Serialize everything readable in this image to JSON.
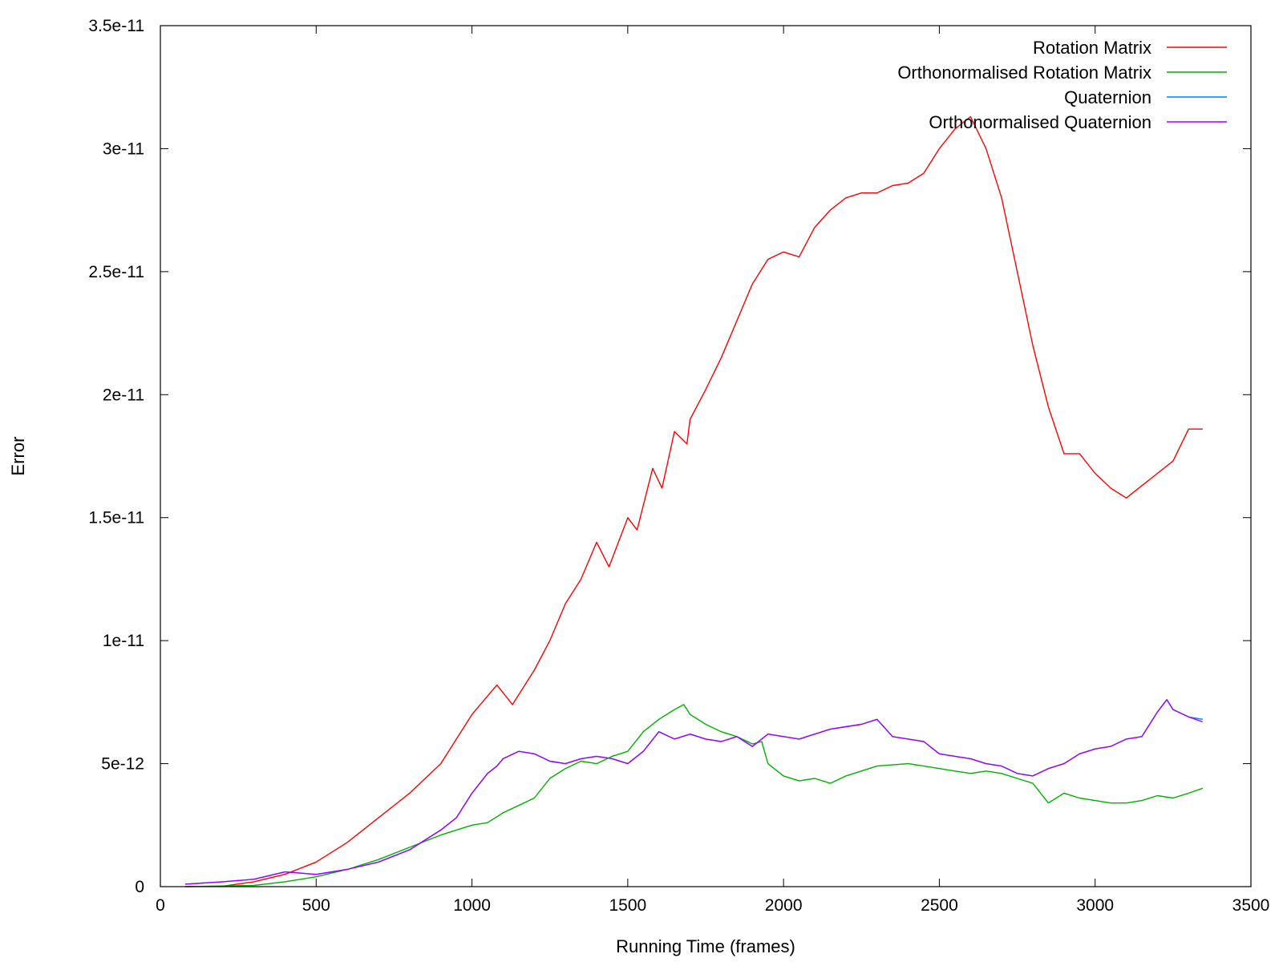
{
  "chart_data": {
    "type": "line",
    "title": "",
    "xlabel": "Running Time (frames)",
    "ylabel": "Error",
    "xlim": [
      0,
      3500
    ],
    "ylim": [
      0,
      3.5e-11
    ],
    "x_ticks": [
      0,
      500,
      1000,
      1500,
      2000,
      2500,
      3000,
      3500
    ],
    "x_tick_labels": [
      "0",
      "500",
      "1000",
      "1500",
      "2000",
      "2500",
      "3000",
      "3500"
    ],
    "y_ticks": [
      0,
      5e-12,
      1e-11,
      1.5e-11,
      2e-11,
      2.5e-11,
      3e-11,
      3.5e-11
    ],
    "y_tick_labels": [
      "0",
      "5e-12",
      "1e-11",
      "1.5e-11",
      "2e-11",
      "2.5e-11",
      "3e-11",
      "3.5e-11"
    ],
    "grid": false,
    "legend_position": "top-right",
    "series": [
      {
        "name": "Rotation Matrix",
        "color": "#ff0000",
        "x": [
          80,
          200,
          300,
          400,
          500,
          600,
          700,
          800,
          900,
          1000,
          1080,
          1130,
          1200,
          1250,
          1300,
          1350,
          1400,
          1440,
          1500,
          1530,
          1580,
          1610,
          1650,
          1690,
          1700,
          1750,
          1800,
          1850,
          1900,
          1950,
          2000,
          2050,
          2100,
          2150,
          2200,
          2250,
          2300,
          2350,
          2400,
          2450,
          2500,
          2550,
          2600,
          2650,
          2700,
          2750,
          2800,
          2850,
          2900,
          2950,
          3000,
          3050,
          3100,
          3150,
          3200,
          3250,
          3300,
          3345
        ],
        "y": [
          0,
          2e-14,
          2e-13,
          5e-13,
          1e-12,
          1.8e-12,
          2.8e-12,
          3.8e-12,
          5e-12,
          7e-12,
          8.2e-12,
          7.4e-12,
          8.8e-12,
          1e-11,
          1.15e-11,
          1.25e-11,
          1.4e-11,
          1.3e-11,
          1.5e-11,
          1.45e-11,
          1.7e-11,
          1.62e-11,
          1.85e-11,
          1.8e-11,
          1.9e-11,
          2.02e-11,
          2.15e-11,
          2.3e-11,
          2.45e-11,
          2.55e-11,
          2.58e-11,
          2.56e-11,
          2.68e-11,
          2.75e-11,
          2.8e-11,
          2.82e-11,
          2.82e-11,
          2.85e-11,
          2.86e-11,
          2.9e-11,
          3e-11,
          3.08e-11,
          3.13e-11,
          3e-11,
          2.8e-11,
          2.5e-11,
          2.2e-11,
          1.95e-11,
          1.76e-11,
          1.76e-11,
          1.68e-11,
          1.62e-11,
          1.58e-11,
          1.63e-11,
          1.68e-11,
          1.73e-11,
          1.86e-11,
          1.86e-11
        ]
      },
      {
        "name": "Orthonormalised Rotation Matrix",
        "color": "#00b000",
        "x": [
          80,
          300,
          400,
          500,
          600,
          700,
          800,
          900,
          1000,
          1050,
          1100,
          1200,
          1250,
          1300,
          1350,
          1400,
          1450,
          1500,
          1550,
          1600,
          1650,
          1680,
          1700,
          1750,
          1800,
          1850,
          1900,
          1930,
          1950,
          2000,
          2050,
          2100,
          2150,
          2200,
          2300,
          2400,
          2450,
          2500,
          2550,
          2600,
          2650,
          2700,
          2750,
          2800,
          2850,
          2900,
          2950,
          3000,
          3050,
          3100,
          3150,
          3200,
          3250,
          3300,
          3345
        ],
        "y": [
          0,
          5e-14,
          2e-13,
          4e-13,
          7e-13,
          1.1e-12,
          1.6e-12,
          2.1e-12,
          2.5e-12,
          2.6e-12,
          3e-12,
          3.6e-12,
          4.4e-12,
          4.8e-12,
          5.1e-12,
          5e-12,
          5.3e-12,
          5.5e-12,
          6.3e-12,
          6.8e-12,
          7.2e-12,
          7.4e-12,
          7e-12,
          6.6e-12,
          6.3e-12,
          6.1e-12,
          5.8e-12,
          5.9e-12,
          5e-12,
          4.5e-12,
          4.3e-12,
          4.4e-12,
          4.2e-12,
          4.5e-12,
          4.9e-12,
          5e-12,
          4.9e-12,
          4.8e-12,
          4.7e-12,
          4.6e-12,
          4.7e-12,
          4.6e-12,
          4.4e-12,
          4.2e-12,
          3.4e-12,
          3.8e-12,
          3.6e-12,
          3.5e-12,
          3.4e-12,
          3.4e-12,
          3.5e-12,
          3.7e-12,
          3.6e-12,
          3.8e-12,
          4e-12
        ]
      },
      {
        "name": "Quaternion",
        "color": "#0080ff",
        "x": [
          80,
          200,
          300,
          400,
          500,
          600,
          700,
          800,
          900,
          950,
          1000,
          1050,
          1080,
          1100,
          1150,
          1200,
          1250,
          1300,
          1350,
          1400,
          1450,
          1500,
          1550,
          1600,
          1650,
          1700,
          1750,
          1800,
          1850,
          1900,
          1950,
          2000,
          2050,
          2100,
          2150,
          2200,
          2250,
          2300,
          2350,
          2400,
          2450,
          2500,
          2550,
          2600,
          2650,
          2700,
          2750,
          2800,
          2850,
          2900,
          2950,
          3000,
          3050,
          3100,
          3150,
          3200,
          3230,
          3250,
          3300,
          3345
        ],
        "y": [
          1e-13,
          2e-13,
          3e-13,
          6e-13,
          5e-13,
          7e-13,
          1e-12,
          1.5e-12,
          2.3e-12,
          2.8e-12,
          3.8e-12,
          4.6e-12,
          4.9e-12,
          5.2e-12,
          5.5e-12,
          5.4e-12,
          5.1e-12,
          5e-12,
          5.2e-12,
          5.3e-12,
          5.2e-12,
          5e-12,
          5.5e-12,
          6.3e-12,
          6e-12,
          6.2e-12,
          6e-12,
          5.9e-12,
          6.1e-12,
          5.7e-12,
          6.2e-12,
          6.1e-12,
          6e-12,
          6.2e-12,
          6.4e-12,
          6.5e-12,
          6.6e-12,
          6.8e-12,
          6.1e-12,
          6e-12,
          5.9e-12,
          5.4e-12,
          5.3e-12,
          5.2e-12,
          5e-12,
          4.9e-12,
          4.6e-12,
          4.5e-12,
          4.8e-12,
          5e-12,
          5.4e-12,
          5.6e-12,
          5.7e-12,
          6e-12,
          6.1e-12,
          7.1e-12,
          7.6e-12,
          7.2e-12,
          6.9e-12,
          6.8e-12
        ]
      },
      {
        "name": "Orthonormalised Quaternion",
        "color": "#a000ff",
        "x": [
          80,
          200,
          300,
          400,
          500,
          600,
          700,
          800,
          900,
          950,
          1000,
          1050,
          1080,
          1100,
          1150,
          1200,
          1250,
          1300,
          1350,
          1400,
          1450,
          1500,
          1550,
          1600,
          1650,
          1700,
          1750,
          1800,
          1850,
          1900,
          1950,
          2000,
          2050,
          2100,
          2150,
          2200,
          2250,
          2300,
          2350,
          2400,
          2450,
          2500,
          2550,
          2600,
          2650,
          2700,
          2750,
          2800,
          2850,
          2900,
          2950,
          3000,
          3050,
          3100,
          3150,
          3200,
          3230,
          3250,
          3300,
          3345
        ],
        "y": [
          1e-13,
          2e-13,
          3e-13,
          6e-13,
          5e-13,
          7e-13,
          1e-12,
          1.5e-12,
          2.3e-12,
          2.8e-12,
          3.8e-12,
          4.6e-12,
          4.9e-12,
          5.2e-12,
          5.5e-12,
          5.4e-12,
          5.1e-12,
          5e-12,
          5.2e-12,
          5.3e-12,
          5.2e-12,
          5e-12,
          5.5e-12,
          6.3e-12,
          6e-12,
          6.2e-12,
          6e-12,
          5.9e-12,
          6.1e-12,
          5.7e-12,
          6.2e-12,
          6.1e-12,
          6e-12,
          6.2e-12,
          6.4e-12,
          6.5e-12,
          6.6e-12,
          6.8e-12,
          6.1e-12,
          6e-12,
          5.9e-12,
          5.4e-12,
          5.3e-12,
          5.2e-12,
          5e-12,
          4.9e-12,
          4.6e-12,
          4.5e-12,
          4.8e-12,
          5e-12,
          5.4e-12,
          5.6e-12,
          5.7e-12,
          6e-12,
          6.1e-12,
          7.1e-12,
          7.6e-12,
          7.2e-12,
          6.9e-12,
          6.7e-12
        ]
      }
    ]
  }
}
